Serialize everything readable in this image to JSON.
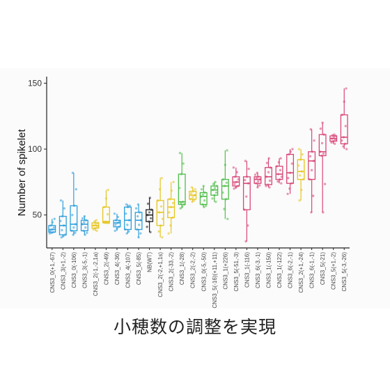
{
  "caption": "小穂数の調整を実現",
  "chart_data": {
    "type": "box",
    "ylabel": "Number of spikelet",
    "xlabel": "",
    "ylim": [
      25,
      155
    ],
    "yticks": [
      50,
      100,
      150
    ],
    "grid": false,
    "colors": {
      "blue": "#2c9fdc",
      "yellow": "#e6c51e",
      "black": "#222222",
      "green": "#4cbd47",
      "pink": "#d94676"
    },
    "boxes": [
      {
        "label": "CNS3_0(+1,-67)",
        "color": "blue",
        "min": 36,
        "q1": 37,
        "median": 39,
        "q3": 42,
        "max": 47
      },
      {
        "label": "CNS3_3(+1,-2)",
        "color": "blue",
        "min": 33,
        "q1": 35,
        "median": 42,
        "q3": 49,
        "max": 61
      },
      {
        "label": "CNS3_0(-106)",
        "color": "blue",
        "min": 35,
        "q1": 38,
        "median": 43,
        "q3": 57,
        "max": 82
      },
      {
        "label": "CNS3_3(-5,-1)",
        "color": "blue",
        "min": 35,
        "q1": 38,
        "median": 43,
        "q3": 46,
        "max": 49
      },
      {
        "label": "CNS3_2(-1,-2,1a)",
        "color": "yellow",
        "min": 38,
        "q1": 40,
        "median": 42,
        "q3": 44,
        "max": 46
      },
      {
        "label": "CNS3_2(-49)",
        "color": "yellow",
        "min": 44,
        "q1": 44,
        "median": 45,
        "q3": 56,
        "max": 69
      },
      {
        "label": "CNS3_4(-36)",
        "color": "blue",
        "min": 38,
        "q1": 41,
        "median": 44,
        "q3": 46,
        "max": 51
      },
      {
        "label": "CNS3_4(-107)",
        "color": "blue",
        "min": 36,
        "q1": 39,
        "median": 46,
        "q3": 56,
        "max": 58
      },
      {
        "label": "CNS3_5(-85)",
        "color": "blue",
        "min": 33,
        "q1": 39,
        "median": 46,
        "q3": 52,
        "max": 58
      },
      {
        "label": "NB(WT)",
        "color": "black",
        "min": 37,
        "q1": 45,
        "median": 50,
        "q3": 54,
        "max": 63
      },
      {
        "label": "CNS3_2(-2,+1,1s)",
        "color": "yellow",
        "min": 33,
        "q1": 42,
        "median": 52,
        "q3": 61,
        "max": 78
      },
      {
        "label": "CNS3_2(-33,-2)",
        "color": "yellow",
        "min": 36,
        "q1": 48,
        "median": 56,
        "q3": 62,
        "max": 75
      },
      {
        "label": "CNS3_1(-28)",
        "color": "green",
        "min": 55,
        "q1": 58,
        "median": 60,
        "q3": 81,
        "max": 97
      },
      {
        "label": "CNS3_2(-2,-2)",
        "color": "yellow",
        "min": 60,
        "q1": 62,
        "median": 65,
        "q3": 68,
        "max": 71
      },
      {
        "label": "CNS3_0(-5,-50)",
        "color": "green",
        "min": 56,
        "q1": 58,
        "median": 64,
        "q3": 67,
        "max": 72
      },
      {
        "label": "CNS3_5(-16)(+11,+11)",
        "color": "green",
        "min": 60,
        "q1": 65,
        "median": 69,
        "q3": 72,
        "max": 75
      },
      {
        "label": "CNS3_1(+226)",
        "color": "green",
        "min": 47,
        "q1": 62,
        "median": 72,
        "q3": 77,
        "max": 99
      },
      {
        "label": "CNS3_5(-51,-3)",
        "color": "pink",
        "min": 70,
        "q1": 72,
        "median": 75,
        "q3": 79,
        "max": 86
      },
      {
        "label": "CNS3_1(-116)",
        "color": "pink",
        "min": 30,
        "q1": 54,
        "median": 74,
        "q3": 79,
        "max": 91
      },
      {
        "label": "CNS3_6(-3,-1)",
        "color": "pink",
        "min": 71,
        "q1": 74,
        "median": 77,
        "q3": 79,
        "max": 82
      },
      {
        "label": "CNS3_1(-150)",
        "color": "pink",
        "min": 71,
        "q1": 73,
        "median": 79,
        "q3": 86,
        "max": 93
      },
      {
        "label": "CNS3_1(-122)",
        "color": "pink",
        "min": 74,
        "q1": 77,
        "median": 81,
        "q3": 87,
        "max": 93
      },
      {
        "label": "CNS3_6(-2,-1)",
        "color": "pink",
        "min": 66,
        "q1": 74,
        "median": 82,
        "q3": 96,
        "max": 100
      },
      {
        "label": "CNS3_2(+1,-24)",
        "color": "yellow",
        "min": 61,
        "q1": 77,
        "median": 83,
        "q3": 92,
        "max": 100
      },
      {
        "label": "CNS3_6(-1,-1)",
        "color": "pink",
        "min": 52,
        "q1": 77,
        "median": 91,
        "q3": 98,
        "max": 115
      },
      {
        "label": "CNS3_5(-21)",
        "color": "pink",
        "min": 52,
        "q1": 95,
        "median": 98,
        "q3": 111,
        "max": 120
      },
      {
        "label": "CNS3_5(+1,-2)",
        "color": "pink",
        "min": 104,
        "q1": 106,
        "median": 108,
        "q3": 110,
        "max": 111
      },
      {
        "label": "CNS3_5(-3,-26)",
        "color": "pink",
        "min": 100,
        "q1": 104,
        "median": 109,
        "q3": 126,
        "max": 146
      }
    ]
  }
}
